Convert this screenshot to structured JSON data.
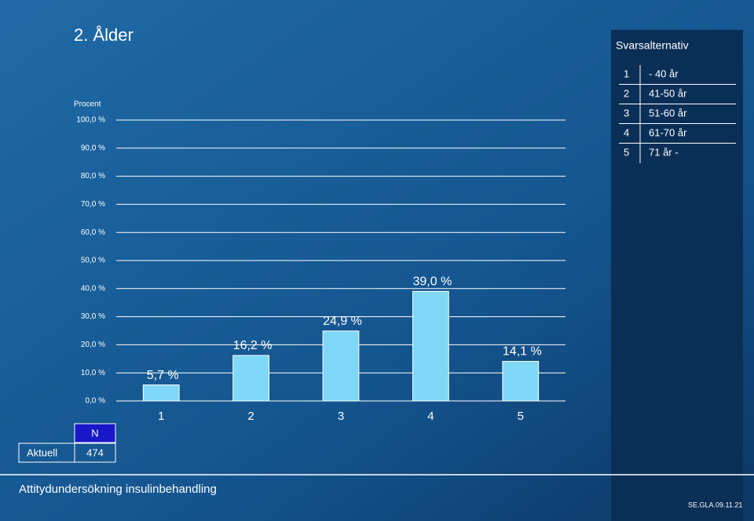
{
  "chart_data": {
    "type": "bar",
    "title": "2. Ålder",
    "y_label": "Procent",
    "categories": [
      "1",
      "2",
      "3",
      "4",
      "5"
    ],
    "values": [
      5.7,
      16.2,
      24.9,
      39.0,
      14.1
    ],
    "value_labels": [
      "5,7 %",
      "16,2 %",
      "24,9 %",
      "39,0 %",
      "14,1 %"
    ],
    "color": "#7fd8f7",
    "grid": true,
    "ylim": [
      0,
      100
    ],
    "yticks": [
      {
        "value": 0,
        "label": "0,0 %"
      },
      {
        "value": 10,
        "label": "10,0 %"
      },
      {
        "value": 20,
        "label": "20,0 %"
      },
      {
        "value": 30,
        "label": "30,0 %"
      },
      {
        "value": 40,
        "label": "40,0 %"
      },
      {
        "value": 50,
        "label": "50,0 %"
      },
      {
        "value": 60,
        "label": "60,0 %"
      },
      {
        "value": 70,
        "label": "70,0 %"
      },
      {
        "value": 80,
        "label": "80,0 %"
      },
      {
        "value": 90,
        "label": "90,0 %"
      },
      {
        "value": 100,
        "label": "100,0 %"
      }
    ]
  },
  "answer_options": {
    "title": "Svarsalternativ",
    "rows": [
      [
        "1",
        "- 40 år"
      ],
      [
        "2",
        "41-50 år"
      ],
      [
        "3",
        "51-60 år"
      ],
      [
        "4",
        "61-70 år"
      ],
      [
        "5",
        "71 år -"
      ]
    ]
  },
  "n_table": {
    "header": "N",
    "row_label": "Aktuell",
    "value": "474"
  },
  "footer": {
    "text": "Attitydundersökning insulinbehandling",
    "code": "SE.GLA.09.11.21"
  }
}
